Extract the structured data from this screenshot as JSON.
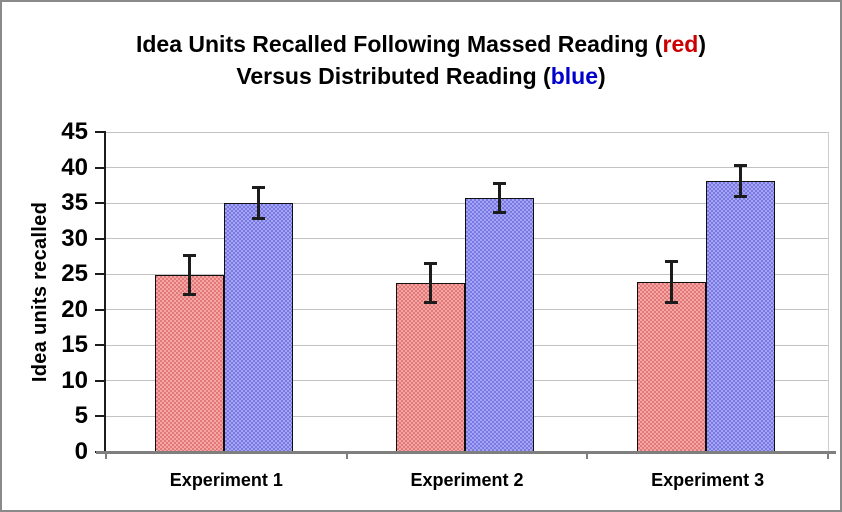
{
  "window": {
    "background": "#ffffff",
    "border_color": "#8a8a8a"
  },
  "title": {
    "line1_text": "Idea Units Recalled Following Massed Reading (",
    "line1_colored": "red",
    "line1_close": ")",
    "line2_text": "Versus Distributed Reading (",
    "line2_colored": "blue",
    "line2_close": ")"
  },
  "colors": {
    "title_red": "#cc0000",
    "title_blue": "#0000cc",
    "massed_bar": "#f28282",
    "distributed_bar": "#8282f2",
    "bar_border": "#101010",
    "gridline": "#c2c2c2",
    "x_axis": "#7f7f7f",
    "y_axis": "#1c1c1c",
    "error_bar": "#1c1c1c",
    "plot_right_border": "#cdcdcd"
  },
  "chart_data": {
    "type": "bar",
    "title": "Idea Units Recalled Following Massed Reading (red) Versus Distributed Reading (blue)",
    "categories": [
      "Experiment 1",
      "Experiment 2",
      "Experiment 3"
    ],
    "series": [
      {
        "name": "Massed Reading",
        "color": "#f28282",
        "values": [
          24.9,
          23.8,
          23.9
        ],
        "error_bars": [
          2.8,
          2.8,
          2.9
        ]
      },
      {
        "name": "Distributed Reading",
        "color": "#8282f2",
        "values": [
          35.0,
          35.7,
          38.1
        ],
        "error_bars": [
          2.2,
          2.1,
          2.2
        ]
      }
    ],
    "xlabel": "",
    "ylabel": "Idea units recalled",
    "ylim": [
      0,
      45
    ],
    "ytick_step": 5,
    "grid": true,
    "legend_position": "none (series colors referenced by words in title)"
  }
}
